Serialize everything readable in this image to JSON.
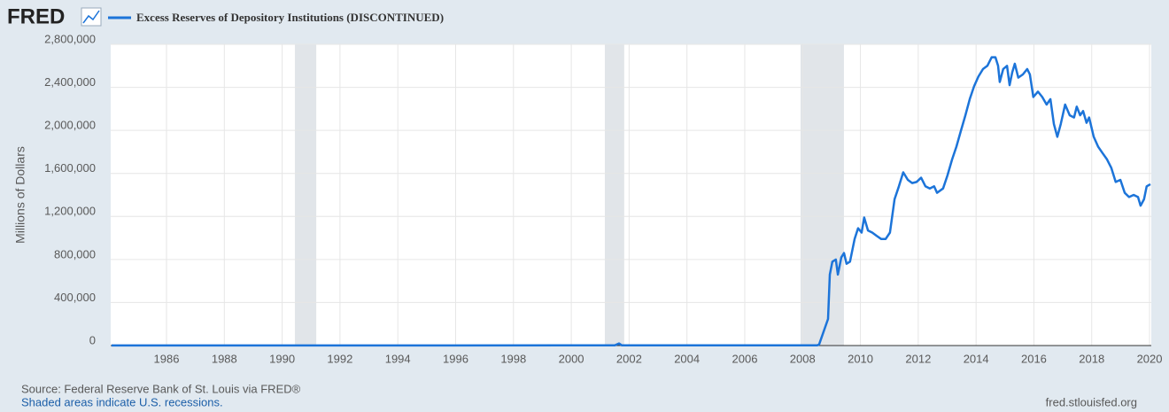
{
  "logo": "FRED",
  "chart_data": {
    "type": "line",
    "ylabel": "Millions of Dollars",
    "x": [
      1984.1,
      2001.5,
      2001.65,
      2001.75,
      2008.5,
      2008.57,
      2008.88,
      2008.94,
      2009.03,
      2009.15,
      2009.22,
      2009.34,
      2009.43,
      2009.52,
      2009.64,
      2009.8,
      2009.92,
      2010.04,
      2010.13,
      2010.26,
      2010.41,
      2010.56,
      2010.72,
      2010.87,
      2011.02,
      2011.18,
      2011.33,
      2011.48,
      2011.64,
      2011.79,
      2011.94,
      2012.1,
      2012.25,
      2012.4,
      2012.55,
      2012.65,
      2012.86,
      2013.01,
      2013.17,
      2013.32,
      2013.47,
      2013.63,
      2013.78,
      2013.93,
      2014.08,
      2014.24,
      2014.39,
      2014.54,
      2014.67,
      2014.76,
      2014.82,
      2014.94,
      2015.07,
      2015.16,
      2015.25,
      2015.34,
      2015.46,
      2015.62,
      2015.77,
      2015.86,
      2015.98,
      2016.14,
      2016.29,
      2016.44,
      2016.57,
      2016.69,
      2016.81,
      2016.93,
      2017.08,
      2017.24,
      2017.39,
      2017.48,
      2017.6,
      2017.7,
      2017.82,
      2017.91,
      2018.07,
      2018.22,
      2018.37,
      2018.53,
      2018.68,
      2018.83,
      2018.99,
      2019.14,
      2019.29,
      2019.45,
      2019.6,
      2019.69,
      2019.81,
      2019.9,
      2020.03
    ],
    "series": [
      {
        "name": "Excess Reserves of Depository Institutions (DISCONTINUED)",
        "color": "#1c74d9",
        "values": [
          1200,
          1500,
          20000,
          1500,
          2000,
          10000,
          247000,
          660000,
          780000,
          800000,
          660000,
          820000,
          860000,
          760000,
          780000,
          990000,
          1090000,
          1050000,
          1190000,
          1070000,
          1050000,
          1020000,
          990000,
          990000,
          1050000,
          1360000,
          1480000,
          1610000,
          1540000,
          1510000,
          1520000,
          1560000,
          1480000,
          1460000,
          1480000,
          1420000,
          1460000,
          1580000,
          1730000,
          1850000,
          1990000,
          2140000,
          2290000,
          2410000,
          2500000,
          2570000,
          2600000,
          2680000,
          2680000,
          2600000,
          2450000,
          2570000,
          2600000,
          2420000,
          2540000,
          2620000,
          2490000,
          2520000,
          2570000,
          2520000,
          2310000,
          2360000,
          2310000,
          2240000,
          2290000,
          2060000,
          1940000,
          2060000,
          2240000,
          2140000,
          2120000,
          2220000,
          2140000,
          2180000,
          2070000,
          2120000,
          1940000,
          1850000,
          1790000,
          1730000,
          1650000,
          1520000,
          1540000,
          1420000,
          1380000,
          1400000,
          1380000,
          1300000,
          1360000,
          1480000,
          1500000
        ]
      }
    ],
    "recessions": [
      [
        1990.44,
        1991.18
      ],
      [
        2001.16,
        2001.83
      ],
      [
        2007.93,
        2009.43
      ]
    ],
    "xlim": [
      1984.07,
      2020.06
    ],
    "xticks": [
      1986,
      1988,
      1990,
      1992,
      1994,
      1996,
      1998,
      2000,
      2002,
      2004,
      2006,
      2008,
      2010,
      2012,
      2014,
      2016,
      2018,
      2020
    ],
    "ylim": [
      0,
      2800000
    ],
    "yticks": [
      0,
      {
        "value": 400000,
        "label": "400,000"
      },
      {
        "value": 800000,
        "label": "800,000"
      },
      {
        "value": 1200000,
        "label": "1,200,000"
      },
      {
        "value": 1600000,
        "label": "1,600,000"
      },
      {
        "value": 2000000,
        "label": "2,000,000"
      },
      {
        "value": 2400000,
        "label": "2,400,000"
      },
      {
        "value": 2800000,
        "label": "2,800,000"
      }
    ],
    "grid": true
  },
  "footer": {
    "source": "Source: Federal Reserve Bank of St. Louis via FRED®",
    "note": "Shaded areas indicate U.S. recessions.",
    "site": "fred.stlouisfed.org"
  }
}
